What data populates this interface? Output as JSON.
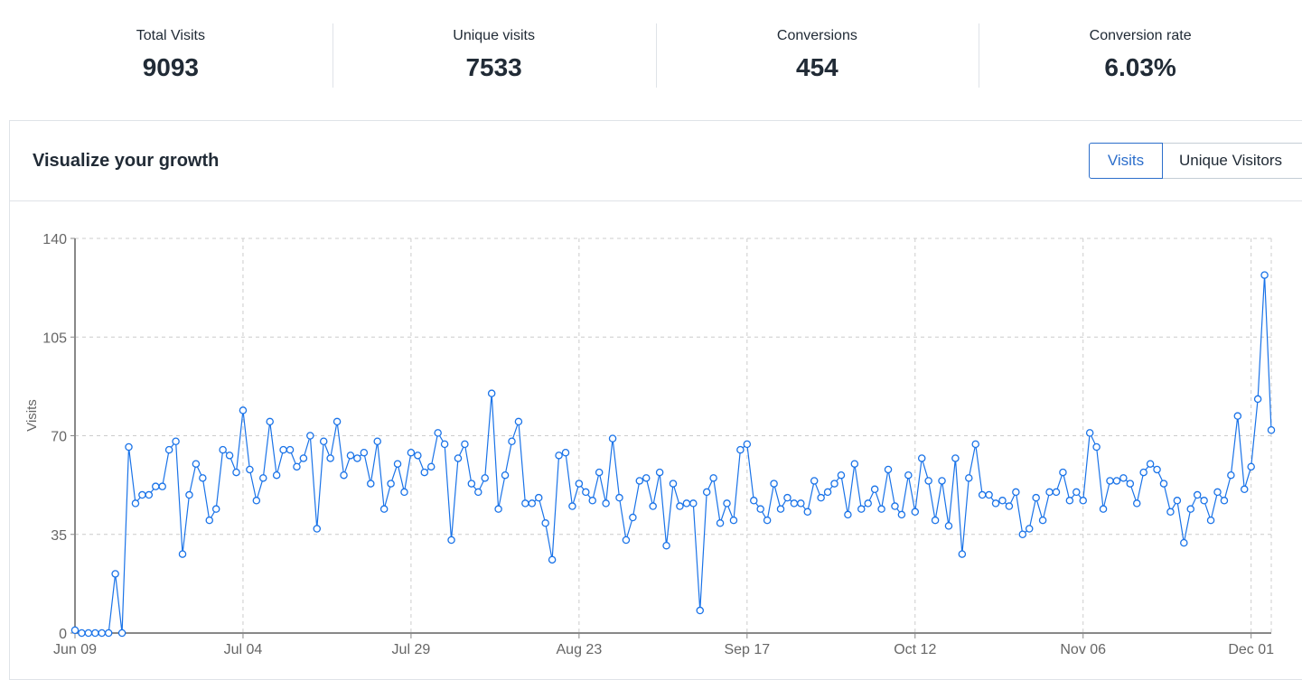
{
  "stats": [
    {
      "label": "Total Visits",
      "value": "9093"
    },
    {
      "label": "Unique visits",
      "value": "7533"
    },
    {
      "label": "Conversions",
      "value": "454"
    },
    {
      "label": "Conversion rate",
      "value": "6.03%"
    }
  ],
  "card": {
    "title": "Visualize your growth",
    "toggle": {
      "visits_label": "Visits",
      "unique_label": "Unique Visitors"
    }
  },
  "colors": {
    "accent": "#2c6ecb",
    "line": "#1a73e8",
    "grid": "#cccccc"
  },
  "chart_data": {
    "type": "line",
    "title": "",
    "xlabel": "",
    "ylabel": "Visits",
    "ylim": [
      0,
      140
    ],
    "yticks": [
      0,
      35,
      70,
      105,
      140
    ],
    "ytick_labels": [
      "0",
      "35",
      "70",
      "105",
      "140"
    ],
    "start_date": "Jun 09",
    "xtick_labels": [
      {
        "label": "Jun 09",
        "day": 0
      },
      {
        "label": "Jul 04",
        "day": 25
      },
      {
        "label": "Jul 29",
        "day": 50
      },
      {
        "label": "Aug 23",
        "day": 75
      },
      {
        "label": "Sep 17",
        "day": 100
      },
      {
        "label": "Oct 12",
        "day": 125
      },
      {
        "label": "Nov 06",
        "day": 150
      },
      {
        "label": "Dec 01",
        "day": 175
      }
    ],
    "grid": true,
    "series": [
      {
        "name": "Visits",
        "values": [
          1,
          0,
          0,
          0,
          0,
          0,
          21,
          0,
          66,
          46,
          49,
          49,
          52,
          52,
          65,
          68,
          28,
          49,
          60,
          55,
          40,
          44,
          65,
          63,
          57,
          79,
          58,
          47,
          55,
          75,
          56,
          65,
          65,
          59,
          62,
          70,
          37,
          68,
          62,
          75,
          56,
          63,
          62,
          64,
          53,
          68,
          44,
          53,
          60,
          50,
          64,
          63,
          57,
          59,
          71,
          67,
          33,
          62,
          67,
          53,
          50,
          55,
          85,
          44,
          56,
          68,
          75,
          46,
          46,
          48,
          39,
          26,
          63,
          64,
          45,
          53,
          50,
          47,
          57,
          46,
          69,
          48,
          33,
          41,
          54,
          55,
          45,
          57,
          31,
          53,
          45,
          46,
          46,
          8,
          50,
          55,
          39,
          46,
          40,
          65,
          67,
          47,
          44,
          40,
          53,
          44,
          48,
          46,
          46,
          43,
          54,
          48,
          50,
          53,
          56,
          42,
          60,
          44,
          46,
          51,
          44,
          58,
          45,
          42,
          56,
          43,
          62,
          54,
          40,
          54,
          38,
          62,
          28,
          55,
          67,
          49,
          49,
          46,
          47,
          45,
          50,
          35,
          37,
          48,
          40,
          50,
          50,
          57,
          47,
          50,
          47,
          71,
          66,
          44,
          54,
          54,
          55,
          53,
          46,
          57,
          60,
          58,
          53,
          43,
          47,
          32,
          44,
          49,
          47,
          40,
          50,
          47,
          56,
          77,
          51,
          59,
          83,
          127,
          72
        ]
      }
    ]
  }
}
